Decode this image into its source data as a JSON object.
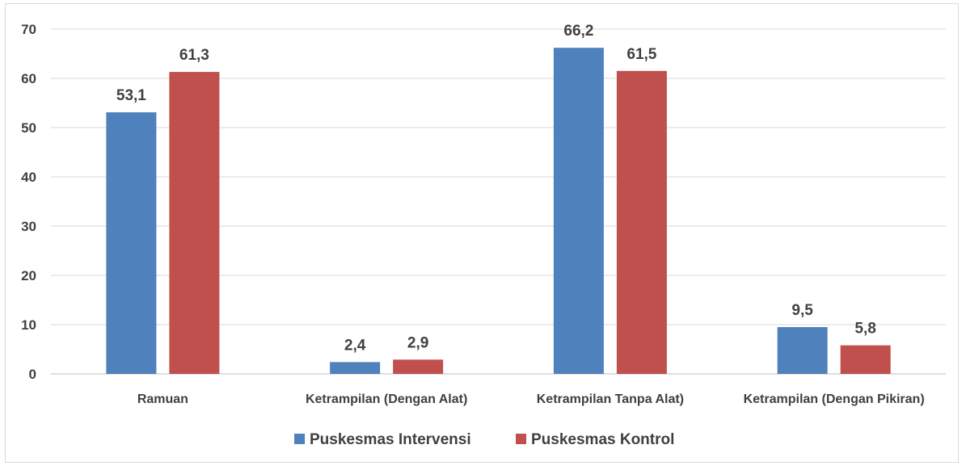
{
  "chart_data": {
    "type": "bar",
    "title": "",
    "xlabel": "",
    "ylabel": "",
    "categories": [
      "Ramuan",
      "Ketrampilan (Dengan Alat)",
      "Ketrampilan Tanpa Alat)",
      "Ketrampilan (Dengan Pikiran)"
    ],
    "series": [
      {
        "name": "Puskesmas Intervensi",
        "color": "#4F81BD",
        "values": [
          53.1,
          2.4,
          66.2,
          9.5
        ],
        "labels": [
          "53,1",
          "2,4",
          "66,2",
          "9,5"
        ]
      },
      {
        "name": "Puskesmas Kontrol",
        "color": "#C0504D",
        "values": [
          61.3,
          2.9,
          61.5,
          5.8
        ],
        "labels": [
          "61,3",
          "2,9",
          "61,5",
          "5,8"
        ]
      }
    ],
    "ylim": [
      0,
      70
    ],
    "yticks": [
      "0",
      "10",
      "20",
      "30",
      "40",
      "50",
      "60",
      "70"
    ],
    "grid": true,
    "legend_position": "bottom"
  }
}
